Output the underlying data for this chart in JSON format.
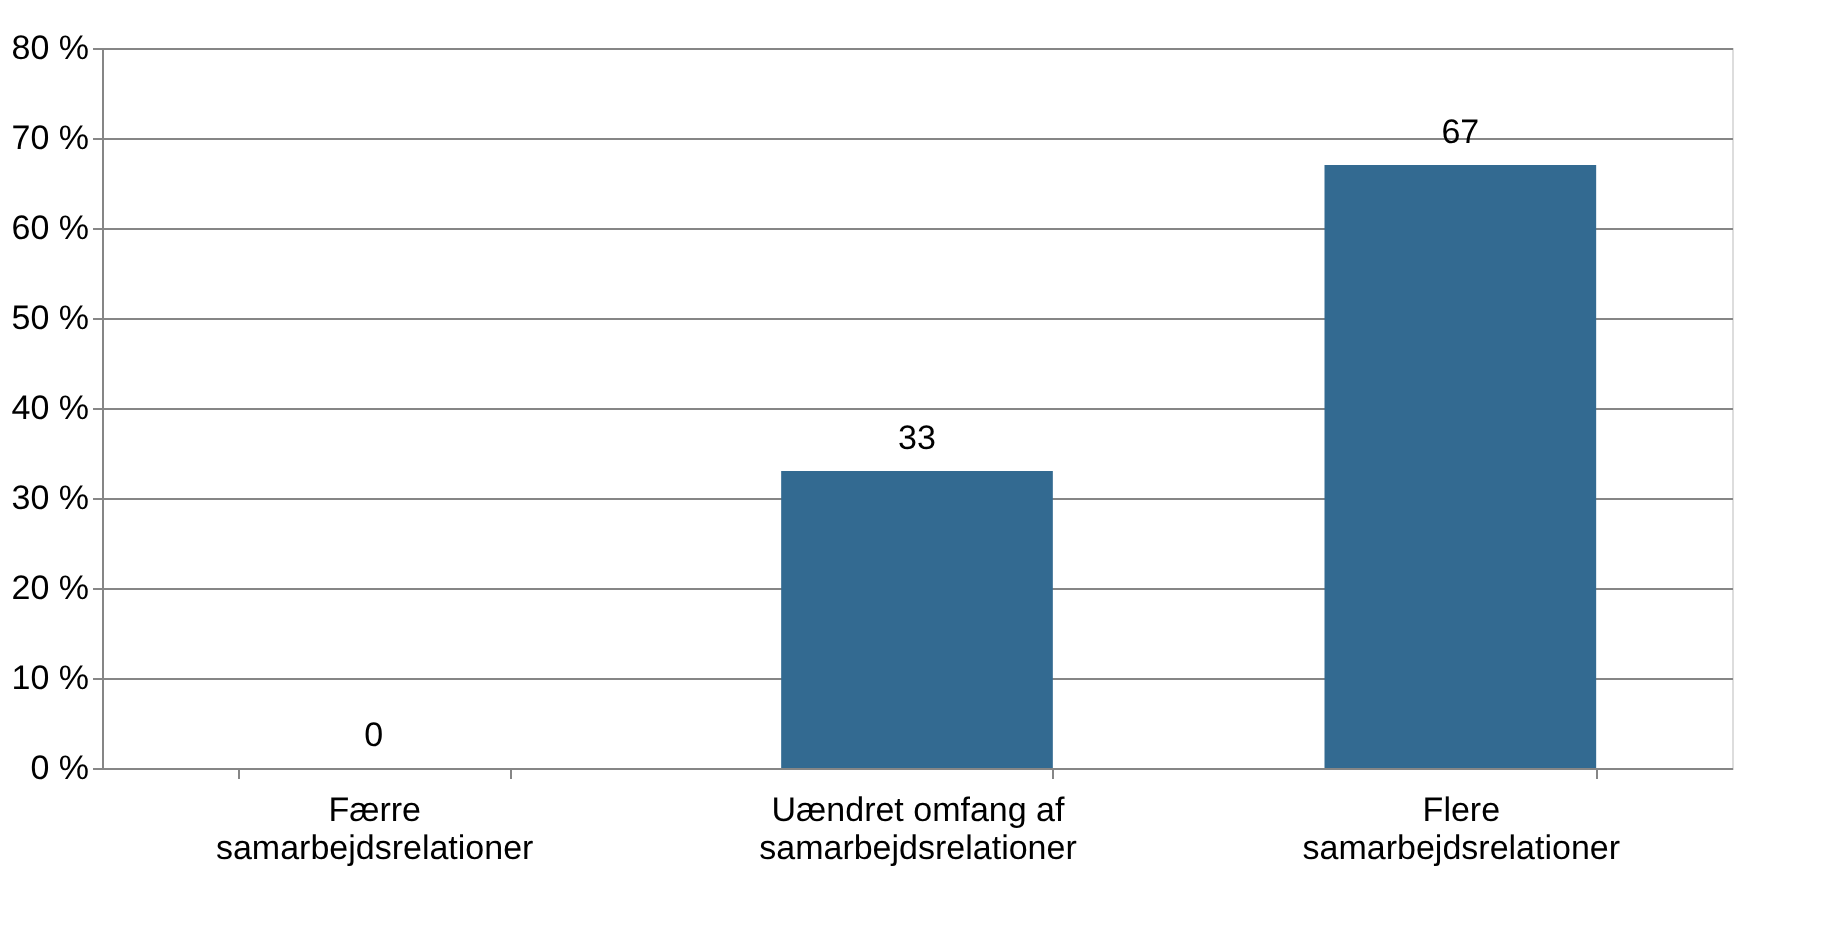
{
  "chart_data": {
    "type": "bar",
    "categories": [
      "Færre samarbejdsrelationer",
      "Uændret omfang af samarbejdsrelationer",
      "Flere samarbejdsrelationer"
    ],
    "values": [
      0,
      33,
      67
    ],
    "color": "#336a91",
    "data_labels": true,
    "ylim": [
      0,
      80
    ],
    "yticks": [
      {
        "value": 0,
        "label": "0 %"
      },
      {
        "value": 10,
        "label": "10 %"
      },
      {
        "value": 20,
        "label": "20 %"
      },
      {
        "value": 30,
        "label": "30 %"
      },
      {
        "value": 40,
        "label": "40 %"
      },
      {
        "value": 50,
        "label": "50 %"
      },
      {
        "value": 60,
        "label": "60 %"
      },
      {
        "value": 70,
        "label": "70 %"
      },
      {
        "value": 80,
        "label": "80 %"
      }
    ],
    "grid": "y"
  }
}
